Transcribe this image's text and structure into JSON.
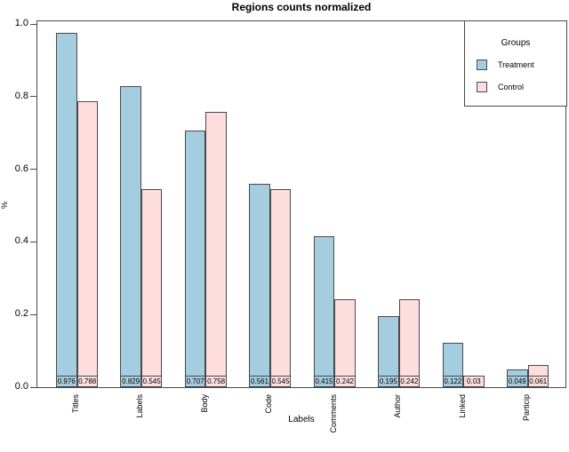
{
  "title": "Regions counts normalized",
  "legend": {
    "title": "Groups",
    "items": [
      {
        "label": "Treatment",
        "color": "#a4cde0"
      },
      {
        "label": "Control",
        "color": "#fddddd"
      }
    ]
  },
  "axes": {
    "x_title": "Labels",
    "y_title": "%"
  },
  "chart_data": {
    "type": "bar",
    "title": "Regions counts normalized",
    "xlabel": "Labels",
    "ylabel": "%",
    "ylim": [
      0.0,
      1.0
    ],
    "yticks": [
      "1.0",
      "0.8",
      "0.6",
      "0.4",
      "0.2",
      "0.0"
    ],
    "grid": false,
    "legend_position": "top-right",
    "value_labels": true,
    "bar_border_color": "#4a4a4a",
    "categories": [
      "Titles",
      "Labels",
      "Body",
      "Code",
      "Comments",
      "Author",
      "Linked",
      "Particip"
    ],
    "series": [
      {
        "name": "Treatment",
        "color": "#a4cde0",
        "values": [
          0.976,
          0.829,
          0.707,
          0.561,
          0.415,
          0.195,
          0.122,
          0.049
        ]
      },
      {
        "name": "Control",
        "color": "#fddddd",
        "values": [
          0.788,
          0.545,
          0.758,
          0.545,
          0.242,
          0.242,
          0.03,
          0.061
        ]
      }
    ]
  }
}
